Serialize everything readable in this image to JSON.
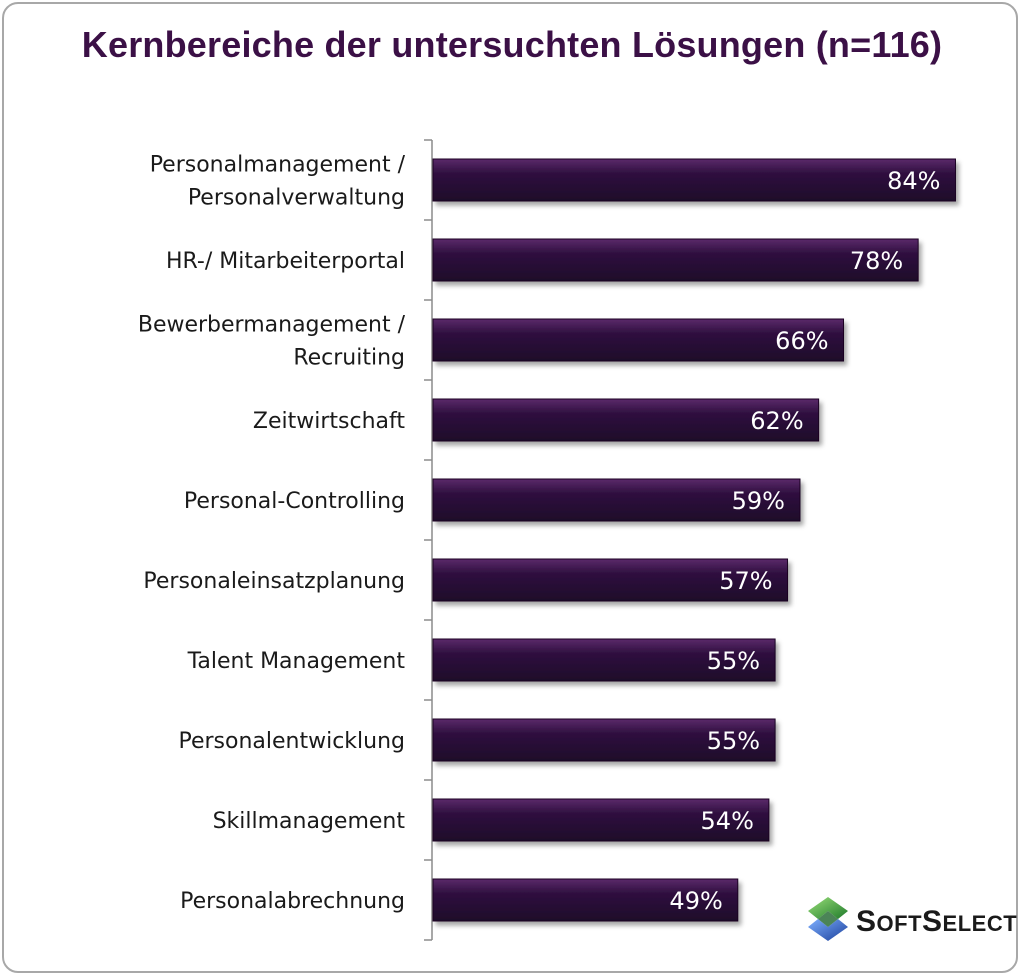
{
  "title": "Kernbereiche der untersuchten Lösungen (n=116)",
  "chart_data": {
    "type": "bar",
    "orientation": "horizontal",
    "title": "Kernbereiche der untersuchten Lösungen (n=116)",
    "categories": [
      [
        "Personalmanagement /",
        "Personalverwaltung"
      ],
      [
        "HR-/ Mitarbeiterportal"
      ],
      [
        "Bewerbermanagement /",
        "Recruiting"
      ],
      [
        "Zeitwirtschaft"
      ],
      [
        "Personal-Controlling"
      ],
      [
        "Personaleinsatzplanung"
      ],
      [
        "Talent Management"
      ],
      [
        "Personalentwicklung"
      ],
      [
        "Skillmanagement"
      ],
      [
        "Personalabrechnung"
      ]
    ],
    "values": [
      84,
      78,
      66,
      62,
      59,
      57,
      55,
      55,
      54,
      49
    ],
    "value_labels": [
      "84%",
      "78%",
      "66%",
      "62%",
      "59%",
      "57%",
      "55%",
      "55%",
      "54%",
      "49%"
    ],
    "unit": "%",
    "xlim": [
      0,
      100
    ],
    "grid": false,
    "bar_color": "#2f0f3f"
  },
  "logo": {
    "big_s": "S",
    "oft": "OFT",
    "big_s2": "S",
    "elect": "ELECT"
  }
}
